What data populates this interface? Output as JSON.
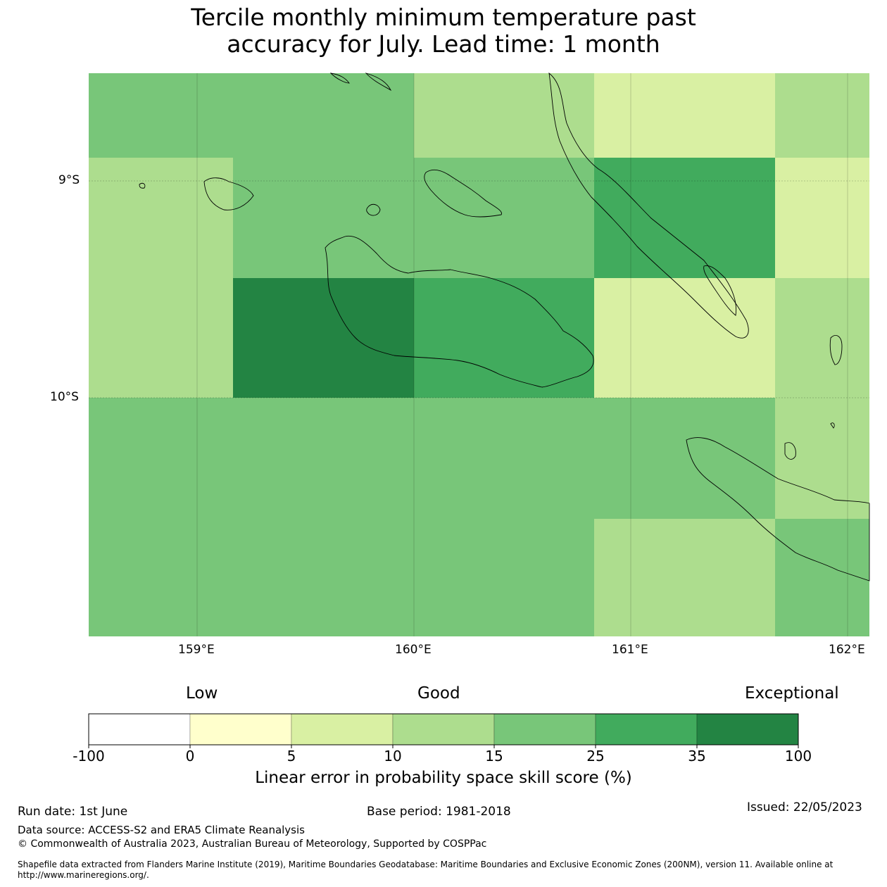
{
  "title": {
    "line1": "Tercile monthly minimum temperature past",
    "line2": "accuracy for July. Lead time: 1 month"
  },
  "map": {
    "lat_range": [
      -10.0,
      -9.0
    ],
    "lon_range": [
      158.5,
      162.1
    ],
    "lat_ticks": [
      {
        "label": "9°S",
        "value": -9.0
      },
      {
        "label": "10°S",
        "value": -10.0
      }
    ],
    "lon_ticks": [
      {
        "label": "159°E",
        "value": 159.0
      },
      {
        "label": "160°E",
        "value": 160.0
      },
      {
        "label": "161°E",
        "value": 161.0
      },
      {
        "label": "162°E",
        "value": 162.0
      }
    ],
    "grid": [
      {
        "row": 0,
        "col": 0,
        "colspan": 3,
        "class": "15-25"
      },
      {
        "row": 0,
        "col": 3,
        "class": "10-15"
      },
      {
        "row": 0,
        "col": 4,
        "class": "5-10"
      },
      {
        "row": 0,
        "col": 5,
        "class": "10-15"
      },
      {
        "row": 1,
        "col": 0,
        "class": "10-15"
      },
      {
        "row": 1,
        "col": 1,
        "colspan": 3,
        "class": "15-25"
      },
      {
        "row": 1,
        "col": 4,
        "class": "25-35"
      },
      {
        "row": 1,
        "col": 5,
        "class": "5-10"
      },
      {
        "row": 2,
        "col": 0,
        "class": "10-15"
      },
      {
        "row": 2,
        "col": 1,
        "colspan": 2,
        "class": "35-100"
      },
      {
        "row": 2,
        "col": 3,
        "class": "25-35"
      },
      {
        "row": 2,
        "col": 4,
        "class": "5-10"
      },
      {
        "row": 2,
        "col": 5,
        "class": "10-15"
      },
      {
        "row": 3,
        "col": 0,
        "colspan": 5,
        "class": "15-25"
      },
      {
        "row": 3,
        "col": 5,
        "class": "10-15"
      },
      {
        "row": 4,
        "col": 0,
        "colspan": 4,
        "class": "15-25"
      },
      {
        "row": 4,
        "col": 4,
        "class": "10-15"
      },
      {
        "row": 4,
        "col": 5,
        "class": "15-25"
      }
    ]
  },
  "colorbar": {
    "categories": [
      {
        "label": "Low"
      },
      {
        "label": "Good"
      },
      {
        "label": "Exceptional"
      }
    ],
    "bins": [
      {
        "from": "-100",
        "to": "0",
        "color": "#ffffff"
      },
      {
        "from": "0",
        "to": "5",
        "color": "#ffffcc"
      },
      {
        "from": "5",
        "to": "10",
        "color": "#d9f0a3"
      },
      {
        "from": "10",
        "to": "15",
        "color": "#addd8e"
      },
      {
        "from": "15",
        "to": "25",
        "color": "#78c679"
      },
      {
        "from": "25",
        "to": "35",
        "color": "#41ab5d"
      },
      {
        "from": "35",
        "to": "100",
        "color": "#238443"
      }
    ],
    "tick_labels": [
      "-100",
      "0",
      "5",
      "10",
      "15",
      "25",
      "35",
      "100"
    ],
    "label": "Linear error in probability space skill score (%)"
  },
  "footer": {
    "run_date": "Run date: 1st June",
    "base_period": "Base period: 1981-2018",
    "issued": "Issued: 22/05/2023",
    "data_source": "Data source: ACCESS-S2 and ERA5 Climate Reanalysis",
    "copyright": "© Commonwealth of Australia 2023, Australian Bureau of Meteorology, Supported by COSPPac",
    "shapefile": "Shapefile data extracted from Flanders Marine Institute (2019), Maritime Boundaries Geodatabase: Maritime Boundaries and Exclusive Economic Zones (200NM), version 11. Available online at http://www.marineregions.org/."
  }
}
